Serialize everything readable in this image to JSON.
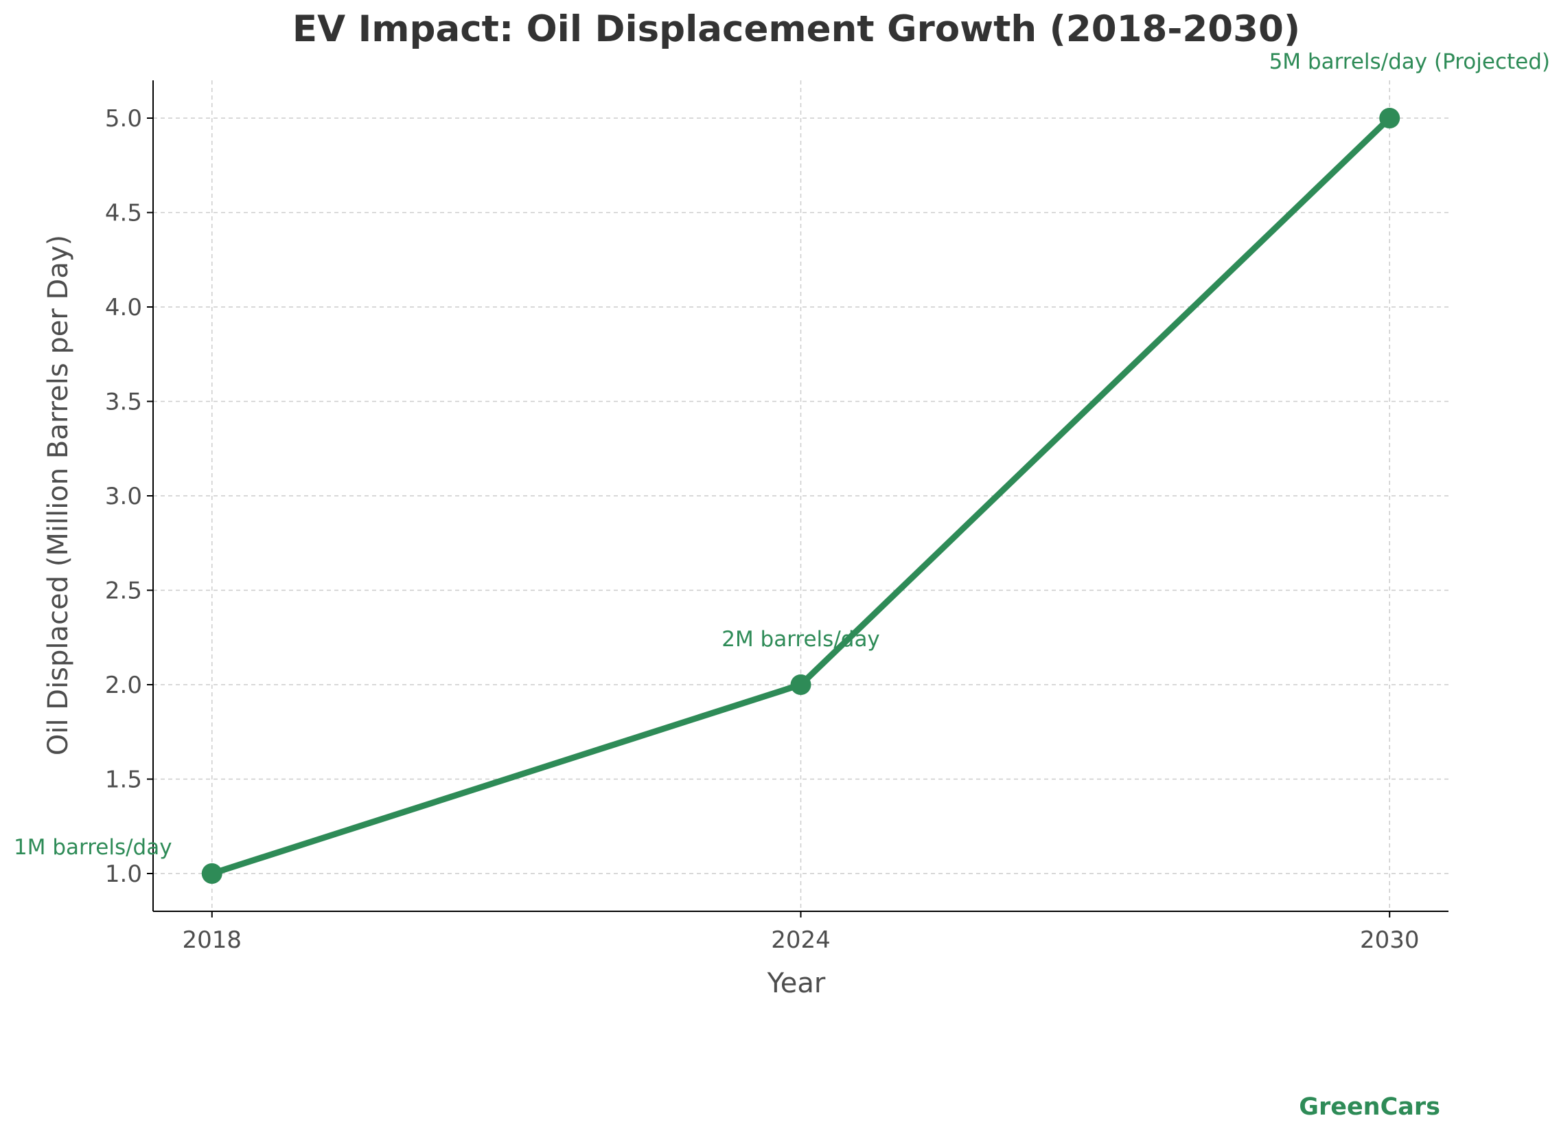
{
  "chart_data": {
    "type": "line",
    "title": "EV Impact: Oil Displacement Growth (2018-2030)",
    "xlabel": "Year",
    "ylabel": "Oil Displaced (Million Barrels per Day)",
    "x": [
      2018,
      2024,
      2030
    ],
    "x_tick_labels": [
      "2018",
      "2024",
      "2030"
    ],
    "xlim": [
      2017.4,
      2030.6
    ],
    "series": [
      {
        "values": [
          1.0,
          2.0,
          5.0
        ],
        "color": "#2e8b57",
        "marker": "circle"
      }
    ],
    "y_ticks": [
      1.0,
      1.5,
      2.0,
      2.5,
      3.0,
      3.5,
      4.0,
      4.5,
      5.0
    ],
    "y_tick_labels": [
      "1.0",
      "1.5",
      "2.0",
      "2.5",
      "3.0",
      "3.5",
      "4.0",
      "4.5",
      "5.0"
    ],
    "ylim": [
      0.8,
      5.2
    ],
    "grid": true,
    "annotations": [
      {
        "x": 2018,
        "y": 1.0,
        "text": "1M barrels/day"
      },
      {
        "x": 2024,
        "y": 2.0,
        "text": "2M barrels/day"
      },
      {
        "x": 2030,
        "y": 5.0,
        "text": "5M barrels/day (Projected)"
      }
    ],
    "annotation_color": "#2e8b57"
  },
  "watermark": {
    "text": "GreenCars",
    "color": "#2e8b57"
  }
}
